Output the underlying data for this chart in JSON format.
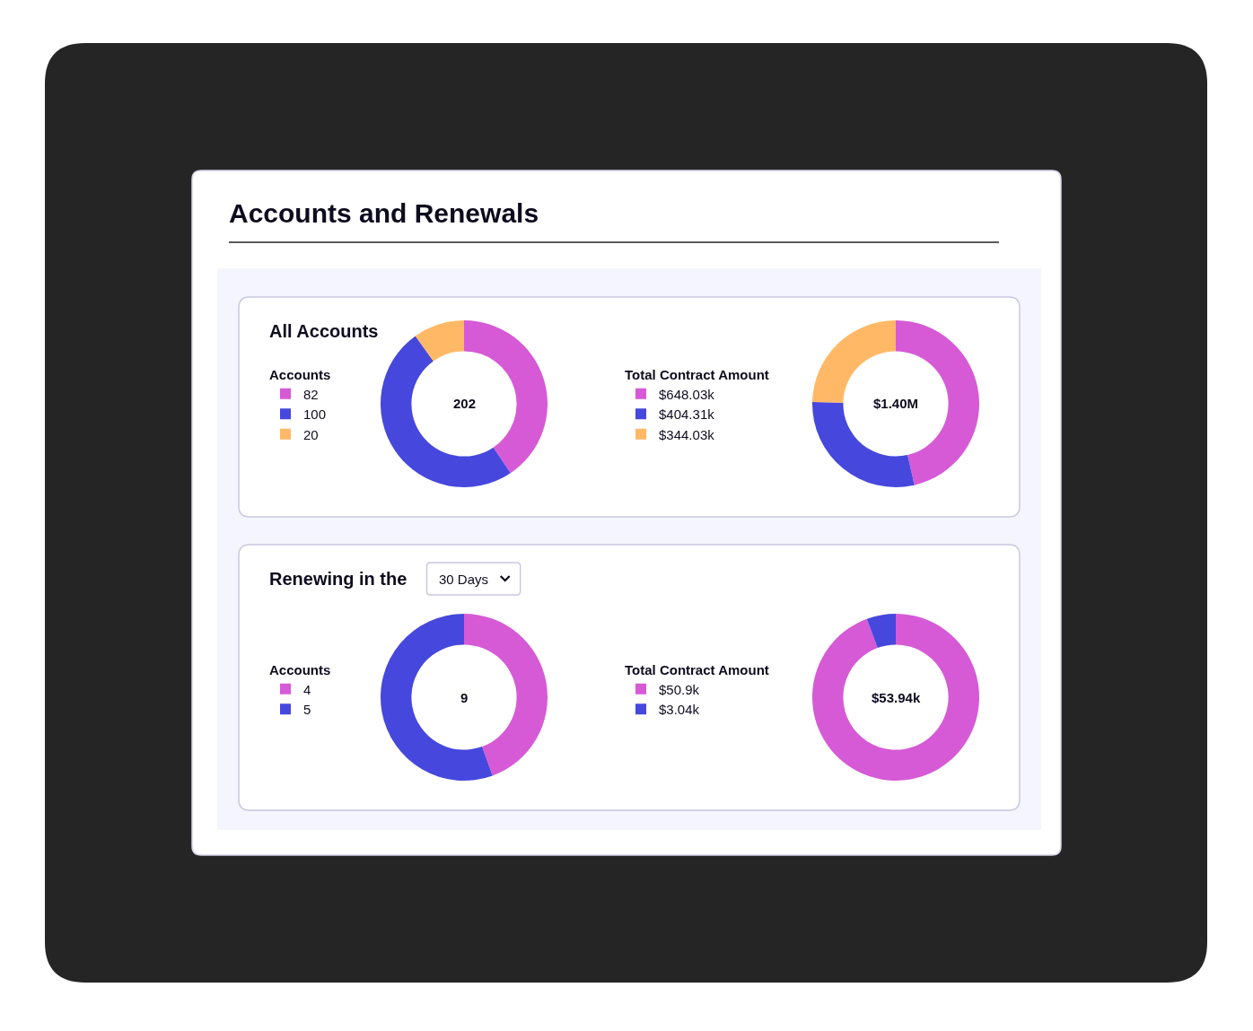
{
  "chart_data": [
    {
      "type": "donut",
      "title": "Accounts and Renewals",
      "subtitle": "All Accounts",
      "legend_title": "Accounts",
      "legend": "left",
      "categories": [
        "82",
        "100",
        "20"
      ],
      "values": [
        82,
        100,
        20
      ],
      "colors": [
        "#d65ad6",
        "#4647dd",
        "#ffb966"
      ],
      "totals": [
        "202"
      ]
    },
    {
      "type": "donut",
      "legend_title": "Total Contract Amount",
      "legend": "left",
      "categories": [
        "$648.03k",
        "$404.31k",
        "$344.03k"
      ],
      "values": [
        648.03,
        404.31,
        344.03
      ],
      "colors": [
        "#d65ad6",
        "#4647dd",
        "#ffb966"
      ],
      "totals": [
        "$1.40M"
      ]
    },
    {
      "type": "donut",
      "subtitle": "Renewing in the",
      "annotations": [
        "30 Days"
      ],
      "legend_title": "Accounts",
      "legend": "left",
      "categories": [
        "4",
        "5"
      ],
      "values": [
        4,
        5
      ],
      "colors": [
        "#d65ad6",
        "#4647dd"
      ],
      "totals": [
        "9"
      ]
    },
    {
      "type": "donut",
      "legend_title": "Total Contract Amount",
      "legend": "left",
      "categories": [
        "$50.9k",
        "$3.04k"
      ],
      "values": [
        50.9,
        3.04
      ],
      "colors": [
        "#d65ad6",
        "#4647dd"
      ],
      "totals": [
        "$53.94k"
      ]
    }
  ]
}
